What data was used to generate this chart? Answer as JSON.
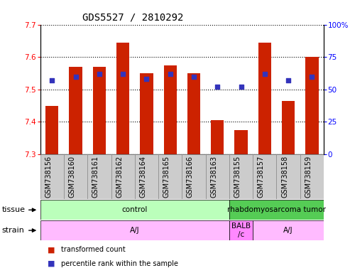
{
  "title": "GDS5527 / 2810292",
  "categories": [
    "GSM738156",
    "GSM738160",
    "GSM738161",
    "GSM738162",
    "GSM738164",
    "GSM738165",
    "GSM738166",
    "GSM738163",
    "GSM738155",
    "GSM738157",
    "GSM738158",
    "GSM738159"
  ],
  "bar_values": [
    7.45,
    7.57,
    7.57,
    7.645,
    7.55,
    7.575,
    7.55,
    7.405,
    7.375,
    7.645,
    7.465,
    7.6
  ],
  "bar_base": 7.3,
  "percentile_values": [
    57,
    60,
    62,
    62,
    58,
    62,
    60,
    52,
    52,
    62,
    57,
    60
  ],
  "ylim_left": [
    7.3,
    7.7
  ],
  "ylim_right": [
    0,
    100
  ],
  "yticks_left": [
    7.3,
    7.4,
    7.5,
    7.6,
    7.7
  ],
  "yticks_right": [
    0,
    25,
    50,
    75,
    100
  ],
  "bar_color": "#cc2200",
  "dot_color": "#3333bb",
  "title_fontsize": 10,
  "tick_fontsize": 7.5,
  "label_fontsize": 7,
  "tissue_groups": [
    {
      "label": "control",
      "start": 0,
      "end": 8,
      "color": "#bbffbb"
    },
    {
      "label": "rhabdomyosarcoma tumor",
      "start": 8,
      "end": 12,
      "color": "#55cc55"
    }
  ],
  "strain_groups": [
    {
      "label": "A/J",
      "start": 0,
      "end": 8,
      "color": "#ffbbff"
    },
    {
      "label": "BALB\n/c",
      "start": 8,
      "end": 9,
      "color": "#ff88ff"
    },
    {
      "label": "A/J",
      "start": 9,
      "end": 12,
      "color": "#ffbbff"
    }
  ],
  "tissue_label": "tissue",
  "strain_label": "strain",
  "legend_items": [
    {
      "color": "#cc2200",
      "label": "transformed count"
    },
    {
      "color": "#3333bb",
      "label": "percentile rank within the sample"
    }
  ],
  "xlabel_bg_color": "#cccccc",
  "xlabel_border_color": "#888888"
}
